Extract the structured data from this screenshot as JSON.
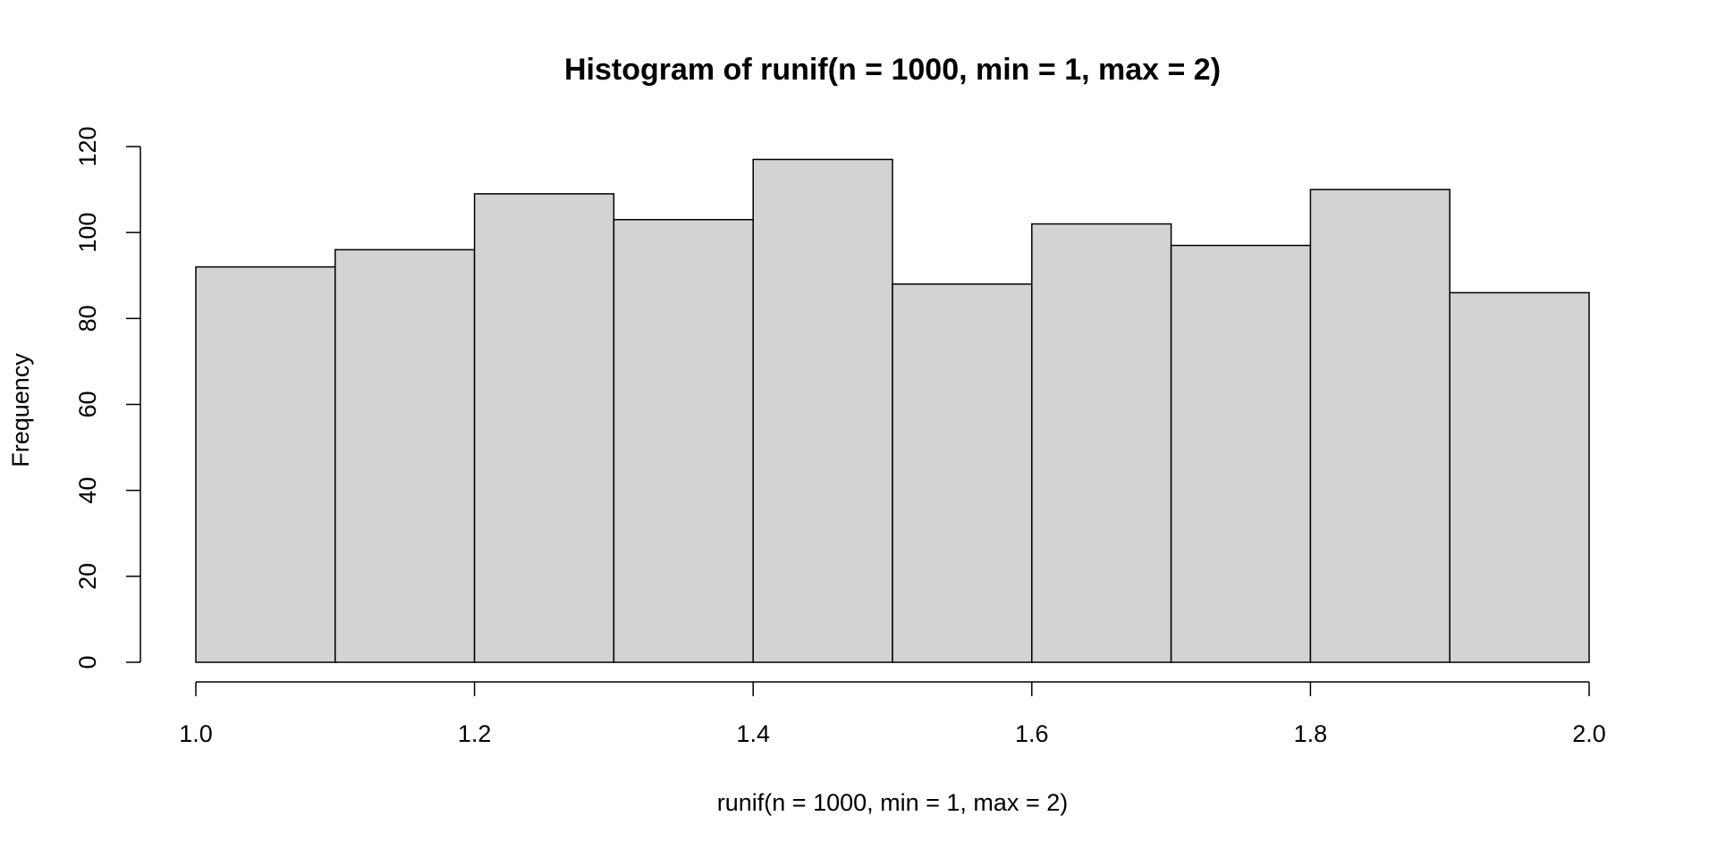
{
  "chart_data": {
    "type": "histogram",
    "title": "Histogram of runif(n = 1000, min = 1, max = 2)",
    "x_label": "runif(n = 1000, min = 1, max = 2)",
    "y_label": "Frequency",
    "bins": [
      1.0,
      1.1,
      1.2,
      1.3,
      1.4,
      1.5,
      1.6,
      1.7,
      1.8,
      1.9,
      2.0
    ],
    "counts": [
      92,
      96,
      109,
      103,
      117,
      88,
      102,
      97,
      110,
      86
    ],
    "color": "#d3d3d3",
    "edge_color": "#000000",
    "xlim": [
      1,
      2
    ],
    "xticks": [
      {
        "value": 1,
        "label": "1.0"
      },
      1.2,
      1.4,
      1.6,
      1.8,
      {
        "value": 2,
        "label": "2.0"
      }
    ],
    "ylim": [
      0,
      120
    ],
    "yticks": [
      0,
      20,
      40,
      60,
      80,
      100,
      120
    ],
    "grid": false
  }
}
